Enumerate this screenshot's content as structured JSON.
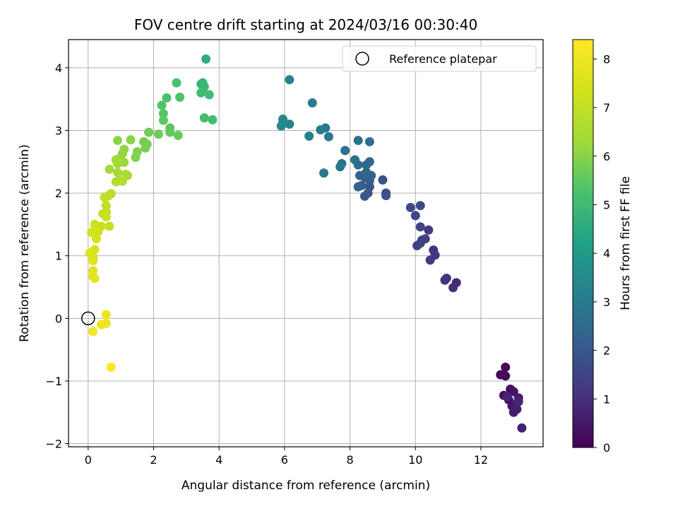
{
  "chart_data": {
    "type": "scatter",
    "title": "FOV centre drift starting at 2024/03/16 00:30:40",
    "xlabel": "Angular distance from reference (arcmin)",
    "ylabel": "Rotation from reference (arcmin)",
    "xlim": [
      -0.6,
      13.9
    ],
    "ylim": [
      -2.05,
      4.45
    ],
    "xticks": [
      0,
      2,
      4,
      6,
      8,
      10,
      12
    ],
    "yticks": [
      -2,
      -1,
      0,
      1,
      2,
      3,
      4
    ],
    "xtick_labels": [
      "0",
      "2",
      "4",
      "6",
      "8",
      "10",
      "12"
    ],
    "ytick_labels": [
      "−2",
      "−1",
      "0",
      "1",
      "2",
      "3",
      "4"
    ],
    "grid": true,
    "legend": {
      "placement": "top-right",
      "entries": [
        "Reference platepar"
      ]
    },
    "reference_point": {
      "x": 0,
      "y": 0
    },
    "colorbar": {
      "label": "Hours from first FF file",
      "colormap": "viridis",
      "range": [
        0,
        8.4
      ],
      "ticks": [
        0,
        1,
        2,
        3,
        4,
        5,
        6,
        7,
        8
      ],
      "tick_labels": [
        "0",
        "1",
        "2",
        "3",
        "4",
        "5",
        "6",
        "7",
        "8"
      ]
    },
    "points": [
      {
        "x": 12.6,
        "y": -0.9,
        "t": 0.1
      },
      {
        "x": 12.75,
        "y": -0.78,
        "t": 0.15
      },
      {
        "x": 12.75,
        "y": -0.92,
        "t": 0.2
      },
      {
        "x": 12.7,
        "y": -1.23,
        "t": 0.25
      },
      {
        "x": 12.9,
        "y": -1.13,
        "t": 0.3
      },
      {
        "x": 12.85,
        "y": -1.3,
        "t": 0.35
      },
      {
        "x": 13.0,
        "y": -1.17,
        "t": 0.4
      },
      {
        "x": 12.95,
        "y": -1.4,
        "t": 0.45
      },
      {
        "x": 13.05,
        "y": -1.37,
        "t": 0.5
      },
      {
        "x": 13.15,
        "y": -1.27,
        "t": 0.55
      },
      {
        "x": 13.0,
        "y": -1.5,
        "t": 0.6
      },
      {
        "x": 13.1,
        "y": -1.45,
        "t": 0.65
      },
      {
        "x": 13.25,
        "y": -1.75,
        "t": 0.7
      },
      {
        "x": 12.8,
        "y": -1.25,
        "t": 0.75
      },
      {
        "x": 13.15,
        "y": -1.33,
        "t": 0.8
      },
      {
        "x": 11.25,
        "y": 0.57,
        "t": 0.9
      },
      {
        "x": 11.15,
        "y": 0.49,
        "t": 0.95
      },
      {
        "x": 10.95,
        "y": 0.64,
        "t": 1.0
      },
      {
        "x": 10.9,
        "y": 0.61,
        "t": 1.05
      },
      {
        "x": 10.55,
        "y": 1.09,
        "t": 1.1
      },
      {
        "x": 10.6,
        "y": 1.01,
        "t": 1.15
      },
      {
        "x": 10.45,
        "y": 0.93,
        "t": 1.2
      },
      {
        "x": 10.4,
        "y": 1.41,
        "t": 1.25
      },
      {
        "x": 10.2,
        "y": 1.25,
        "t": 1.3
      },
      {
        "x": 10.3,
        "y": 1.27,
        "t": 1.35
      },
      {
        "x": 10.05,
        "y": 1.16,
        "t": 1.4
      },
      {
        "x": 10.15,
        "y": 1.2,
        "t": 1.45
      },
      {
        "x": 10.15,
        "y": 1.46,
        "t": 1.5
      },
      {
        "x": 10.0,
        "y": 1.64,
        "t": 1.55
      },
      {
        "x": 10.15,
        "y": 1.8,
        "t": 1.6
      },
      {
        "x": 9.85,
        "y": 1.77,
        "t": 1.65
      },
      {
        "x": 9.1,
        "y": 2.0,
        "t": 1.8
      },
      {
        "x": 9.1,
        "y": 1.96,
        "t": 1.85
      },
      {
        "x": 9.0,
        "y": 2.21,
        "t": 1.9
      },
      {
        "x": 8.6,
        "y": 2.1,
        "t": 1.95
      },
      {
        "x": 8.55,
        "y": 2.0,
        "t": 2.0
      },
      {
        "x": 8.45,
        "y": 1.95,
        "t": 2.05
      },
      {
        "x": 8.35,
        "y": 2.12,
        "t": 2.1
      },
      {
        "x": 8.6,
        "y": 2.2,
        "t": 2.15
      },
      {
        "x": 8.45,
        "y": 2.25,
        "t": 2.2
      },
      {
        "x": 8.3,
        "y": 2.28,
        "t": 2.25
      },
      {
        "x": 8.25,
        "y": 2.1,
        "t": 2.3
      },
      {
        "x": 8.65,
        "y": 2.28,
        "t": 2.35
      },
      {
        "x": 8.5,
        "y": 2.33,
        "t": 2.4
      },
      {
        "x": 8.6,
        "y": 2.5,
        "t": 2.45
      },
      {
        "x": 8.5,
        "y": 2.45,
        "t": 2.5
      },
      {
        "x": 8.25,
        "y": 2.45,
        "t": 2.55
      },
      {
        "x": 8.15,
        "y": 2.53,
        "t": 2.6
      },
      {
        "x": 8.6,
        "y": 2.82,
        "t": 2.65
      },
      {
        "x": 8.25,
        "y": 2.84,
        "t": 2.7
      },
      {
        "x": 7.85,
        "y": 2.68,
        "t": 2.75
      },
      {
        "x": 7.75,
        "y": 2.47,
        "t": 2.8
      },
      {
        "x": 7.7,
        "y": 2.42,
        "t": 2.85
      },
      {
        "x": 7.2,
        "y": 2.32,
        "t": 2.9
      },
      {
        "x": 7.35,
        "y": 2.9,
        "t": 2.95
      },
      {
        "x": 7.25,
        "y": 3.04,
        "t": 3.0
      },
      {
        "x": 7.1,
        "y": 3.01,
        "t": 3.05
      },
      {
        "x": 6.85,
        "y": 3.44,
        "t": 3.1
      },
      {
        "x": 6.75,
        "y": 2.91,
        "t": 3.15
      },
      {
        "x": 6.15,
        "y": 3.81,
        "t": 3.2
      },
      {
        "x": 6.15,
        "y": 3.1,
        "t": 3.3
      },
      {
        "x": 5.95,
        "y": 3.12,
        "t": 3.35
      },
      {
        "x": 5.95,
        "y": 3.18,
        "t": 3.4
      },
      {
        "x": 5.9,
        "y": 3.07,
        "t": 3.45
      },
      {
        "x": 3.6,
        "y": 4.14,
        "t": 4.6
      },
      {
        "x": 3.5,
        "y": 3.76,
        "t": 4.8
      },
      {
        "x": 3.45,
        "y": 3.74,
        "t": 4.85
      },
      {
        "x": 3.55,
        "y": 3.7,
        "t": 4.9
      },
      {
        "x": 3.5,
        "y": 3.63,
        "t": 4.95
      },
      {
        "x": 3.45,
        "y": 3.6,
        "t": 5.0
      },
      {
        "x": 3.7,
        "y": 3.57,
        "t": 5.05
      },
      {
        "x": 3.55,
        "y": 3.2,
        "t": 5.1
      },
      {
        "x": 3.8,
        "y": 3.17,
        "t": 5.15
      },
      {
        "x": 2.7,
        "y": 3.76,
        "t": 5.2
      },
      {
        "x": 2.4,
        "y": 3.52,
        "t": 5.25
      },
      {
        "x": 2.8,
        "y": 3.53,
        "t": 5.3
      },
      {
        "x": 2.25,
        "y": 3.4,
        "t": 5.35
      },
      {
        "x": 2.3,
        "y": 3.27,
        "t": 5.4
      },
      {
        "x": 2.3,
        "y": 3.16,
        "t": 5.45
      },
      {
        "x": 2.5,
        "y": 3.04,
        "t": 5.5
      },
      {
        "x": 2.5,
        "y": 2.97,
        "t": 5.55
      },
      {
        "x": 2.75,
        "y": 2.92,
        "t": 5.6
      },
      {
        "x": 2.15,
        "y": 2.94,
        "t": 5.65
      },
      {
        "x": 1.85,
        "y": 2.97,
        "t": 5.7
      },
      {
        "x": 1.7,
        "y": 2.82,
        "t": 5.75
      },
      {
        "x": 1.8,
        "y": 2.78,
        "t": 5.8
      },
      {
        "x": 1.75,
        "y": 2.72,
        "t": 5.85
      },
      {
        "x": 1.5,
        "y": 2.66,
        "t": 5.9
      },
      {
        "x": 1.45,
        "y": 2.57,
        "t": 5.95
      },
      {
        "x": 1.3,
        "y": 2.85,
        "t": 6.0
      },
      {
        "x": 0.9,
        "y": 2.84,
        "t": 6.05
      },
      {
        "x": 1.1,
        "y": 2.7,
        "t": 6.1
      },
      {
        "x": 1.05,
        "y": 2.63,
        "t": 6.15
      },
      {
        "x": 0.95,
        "y": 2.55,
        "t": 6.2
      },
      {
        "x": 1.1,
        "y": 2.49,
        "t": 6.25
      },
      {
        "x": 0.85,
        "y": 2.53,
        "t": 6.3
      },
      {
        "x": 0.9,
        "y": 2.47,
        "t": 6.35
      },
      {
        "x": 0.65,
        "y": 2.38,
        "t": 6.4
      },
      {
        "x": 0.9,
        "y": 2.33,
        "t": 6.45
      },
      {
        "x": 1.15,
        "y": 2.3,
        "t": 6.5
      },
      {
        "x": 1.2,
        "y": 2.28,
        "t": 6.55
      },
      {
        "x": 0.95,
        "y": 2.2,
        "t": 6.6
      },
      {
        "x": 1.05,
        "y": 2.19,
        "t": 6.65
      },
      {
        "x": 0.85,
        "y": 2.18,
        "t": 6.7
      },
      {
        "x": 0.7,
        "y": 1.99,
        "t": 6.8
      },
      {
        "x": 0.6,
        "y": 1.95,
        "t": 6.85
      },
      {
        "x": 0.5,
        "y": 1.93,
        "t": 6.9
      },
      {
        "x": 0.55,
        "y": 1.8,
        "t": 6.95
      },
      {
        "x": 0.55,
        "y": 1.7,
        "t": 7.0
      },
      {
        "x": 0.45,
        "y": 1.67,
        "t": 7.05
      },
      {
        "x": 0.55,
        "y": 1.62,
        "t": 7.1
      },
      {
        "x": 0.65,
        "y": 1.47,
        "t": 7.15
      },
      {
        "x": 0.4,
        "y": 1.47,
        "t": 7.2
      },
      {
        "x": 0.2,
        "y": 1.5,
        "t": 7.25
      },
      {
        "x": 0.3,
        "y": 1.38,
        "t": 7.3
      },
      {
        "x": 0.1,
        "y": 1.37,
        "t": 7.35
      },
      {
        "x": 0.25,
        "y": 1.27,
        "t": 7.4
      },
      {
        "x": 0.2,
        "y": 1.1,
        "t": 7.5
      },
      {
        "x": 0.05,
        "y": 1.04,
        "t": 7.55
      },
      {
        "x": 0.15,
        "y": 0.98,
        "t": 7.6
      },
      {
        "x": 0.15,
        "y": 0.92,
        "t": 7.65
      },
      {
        "x": 0.15,
        "y": 0.76,
        "t": 7.7
      },
      {
        "x": 0.15,
        "y": 0.67,
        "t": 7.75
      },
      {
        "x": 0.2,
        "y": 0.64,
        "t": 7.8
      },
      {
        "x": 0.55,
        "y": 0.06,
        "t": 7.95
      },
      {
        "x": 0.55,
        "y": -0.08,
        "t": 8.0
      },
      {
        "x": 0.4,
        "y": -0.1,
        "t": 8.05
      },
      {
        "x": 0.15,
        "y": -0.21,
        "t": 8.15
      },
      {
        "x": 0.7,
        "y": -0.78,
        "t": 8.3
      }
    ]
  }
}
